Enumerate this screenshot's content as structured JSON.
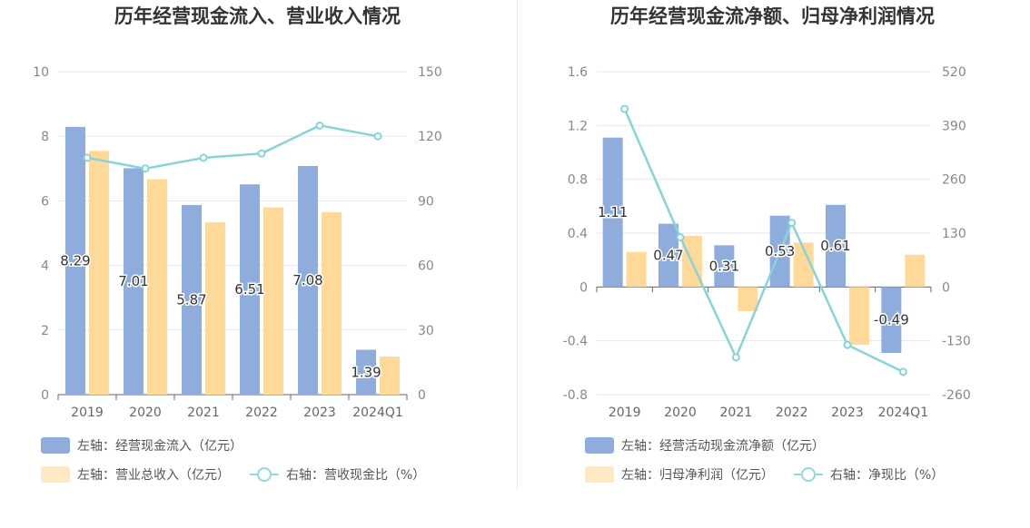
{
  "colors": {
    "bar1": "#8eaddc",
    "bar2": "#ffd99a",
    "line": "#86d4d8",
    "grid": "#e3e7f1"
  },
  "chart_data": [
    {
      "type": "bar",
      "title": "历年经营现金流入、营业收入情况",
      "categories": [
        "2019",
        "2020",
        "2021",
        "2022",
        "2023",
        "2024Q1"
      ],
      "left_axis": {
        "ticks": [
          "0",
          "2",
          "4",
          "6",
          "8",
          "10"
        ],
        "ylim": [
          0,
          10
        ]
      },
      "right_axis": {
        "ticks": [
          "0",
          "30",
          "60",
          "90",
          "120",
          "150"
        ],
        "ylim": [
          0,
          150
        ]
      },
      "series": [
        {
          "name": "左轴：经营现金流入（亿元）",
          "axis": "left",
          "type": "bar",
          "values": [
            8.29,
            7.01,
            5.87,
            6.51,
            7.08,
            1.39
          ],
          "labels": [
            "8.29",
            "7.01",
            "5.87",
            "6.51",
            "7.08",
            "1.39"
          ]
        },
        {
          "name": "左轴：营业总收入（亿元）",
          "axis": "left",
          "type": "bar",
          "values": [
            7.55,
            6.67,
            5.34,
            5.8,
            5.65,
            1.18
          ]
        },
        {
          "name": "右轴：营收现金比（%）",
          "axis": "right",
          "type": "line",
          "values": [
            110,
            105,
            110,
            112,
            125,
            120
          ]
        }
      ]
    },
    {
      "type": "bar",
      "title": "历年经营现金流净额、归母净利润情况",
      "categories": [
        "2019",
        "2020",
        "2021",
        "2022",
        "2023",
        "2024Q1"
      ],
      "left_axis": {
        "ticks": [
          "-0.8",
          "-0.4",
          "0",
          "0.4",
          "0.8",
          "1.2",
          "1.6"
        ],
        "ylim": [
          -0.8,
          1.6
        ]
      },
      "right_axis": {
        "ticks": [
          "-260",
          "-130",
          "0",
          "130",
          "260",
          "390",
          "520"
        ],
        "ylim": [
          -260,
          520
        ]
      },
      "series": [
        {
          "name": "左轴：经营活动现金流净额（亿元）",
          "axis": "left",
          "type": "bar",
          "values": [
            1.11,
            0.47,
            0.31,
            0.53,
            0.61,
            -0.49
          ],
          "labels": [
            "1.11",
            "0.47",
            "0.31",
            "0.53",
            "0.61",
            "-0.49"
          ]
        },
        {
          "name": "左轴：归母净利润（亿元）",
          "axis": "left",
          "type": "bar",
          "values": [
            0.26,
            0.38,
            -0.18,
            0.33,
            -0.43,
            0.24
          ]
        },
        {
          "name": "右轴：净现比（%）",
          "axis": "right",
          "type": "line",
          "values": [
            430,
            120,
            -170,
            155,
            -140,
            -205
          ]
        }
      ]
    }
  ]
}
